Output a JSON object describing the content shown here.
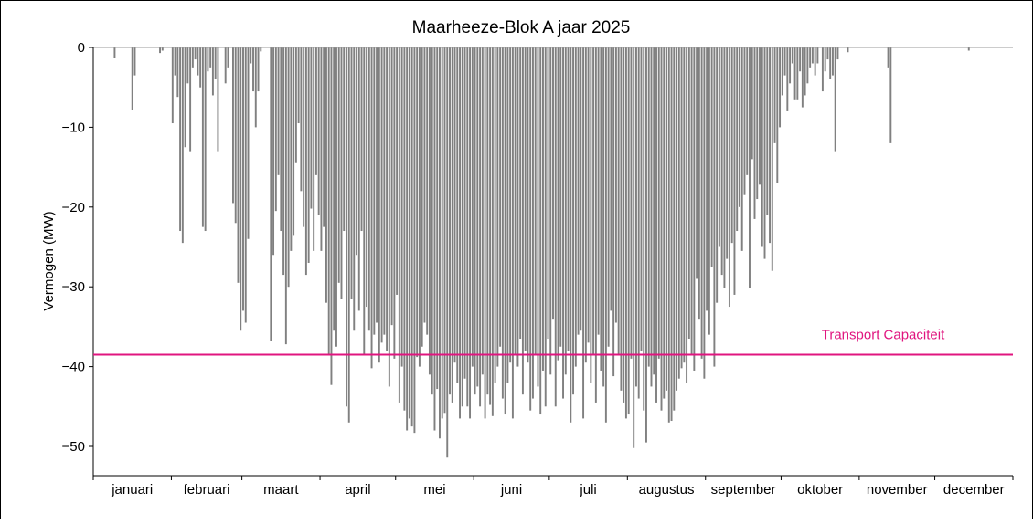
{
  "chart_data": {
    "type": "bar",
    "title": "Maarheeze-Blok A jaar 2025",
    "ylabel": "Vermogen (MW)",
    "xlabel": "",
    "ylim": [
      -53.5,
      0
    ],
    "yticks": [
      0,
      -10,
      -20,
      -30,
      -40,
      -50
    ],
    "xlim": [
      1,
      366
    ],
    "grid": false,
    "bar_color": "#808080",
    "months": [
      {
        "label": "januari",
        "start": 1,
        "end": 32
      },
      {
        "label": "februari",
        "start": 32,
        "end": 60
      },
      {
        "label": "maart",
        "start": 60,
        "end": 91
      },
      {
        "label": "april",
        "start": 91,
        "end": 121
      },
      {
        "label": "mei",
        "start": 121,
        "end": 152
      },
      {
        "label": "juni",
        "start": 152,
        "end": 182
      },
      {
        "label": "juli",
        "start": 182,
        "end": 213
      },
      {
        "label": "augustus",
        "start": 213,
        "end": 244
      },
      {
        "label": "september",
        "start": 244,
        "end": 274
      },
      {
        "label": "oktober",
        "start": 274,
        "end": 305
      },
      {
        "label": "november",
        "start": 305,
        "end": 335
      },
      {
        "label": "december",
        "start": 335,
        "end": 366
      }
    ],
    "series": [
      {
        "values": [
          0,
          0,
          0,
          0,
          0,
          0,
          0,
          0,
          -1.3,
          0,
          0,
          0,
          0,
          0,
          0,
          -7.8,
          -3.5,
          0,
          0,
          0,
          0,
          0,
          0,
          0,
          0,
          0,
          -0.7,
          -0.4,
          0,
          0,
          0,
          -9.5,
          -3.5,
          -6.2,
          -23,
          -24.5,
          -12.5,
          -4.5,
          -13,
          -2.5,
          -1.5,
          -3.5,
          -5,
          -22.5,
          -23,
          -3,
          -2.5,
          -6,
          -4,
          -13,
          0,
          0,
          -4.5,
          -2.5,
          0,
          -19.5,
          -22,
          -29.5,
          -35.5,
          -33,
          -34.5,
          -24,
          -2,
          -5.5,
          -10,
          -5.5,
          -0.5,
          0,
          0,
          0,
          -36.8,
          -26,
          -20.5,
          -16,
          -23,
          -28.5,
          -37.2,
          -30,
          -25.5,
          -23.5,
          -14.5,
          -9.5,
          -18,
          -22.5,
          -28.5,
          -27,
          -20.2,
          -25.5,
          -16,
          -21,
          -25.5,
          -22.5,
          -32,
          -38.5,
          -42.3,
          -35.5,
          -37.5,
          -29.5,
          -31.5,
          -23,
          -45,
          -47,
          -31.5,
          -35.5,
          -26,
          -33,
          -23,
          -38.5,
          -32.5,
          -35.5,
          -40.2,
          -36,
          -34.5,
          -39.5,
          -37,
          -36,
          -38,
          -42.5,
          -34.8,
          -39,
          -31,
          -44.5,
          -40,
          -45.5,
          -48,
          -46.5,
          -47.5,
          -48.3,
          -38.8,
          -40,
          -37.5,
          -34.5,
          -36,
          -41,
          -43.5,
          -48,
          -42.8,
          -49,
          -46.5,
          -45.8,
          -51.4,
          -43.5,
          -44.5,
          -39.5,
          -42,
          -46.5,
          -45,
          -41.5,
          -45,
          -46.5,
          -40,
          -43.5,
          -42.5,
          -45,
          -41,
          -46.5,
          -43.5,
          -44.8,
          -46.2,
          -42,
          -40,
          -37.5,
          -44,
          -46,
          -42,
          -39.5,
          -46.5,
          -38.5,
          -40,
          -36.5,
          -43.5,
          -38,
          -39.5,
          -45.5,
          -44,
          -38.5,
          -42.5,
          -46,
          -40.5,
          -45,
          -36.5,
          -41,
          -34,
          -45,
          -39.2,
          -37.5,
          -44,
          -41,
          -38,
          -47,
          -43.5,
          -40,
          -36,
          -35.5,
          -46.5,
          -39.5,
          -37,
          -42,
          -38.5,
          -44.5,
          -36,
          -40.5,
          -42.5,
          -47,
          -37.5,
          -33,
          -41.2,
          -34.5,
          -38.5,
          -43,
          -44.5,
          -46.5,
          -46,
          -39,
          -50.2,
          -42.5,
          -44,
          -38,
          -45.5,
          -49.5,
          -40,
          -42.5,
          -41,
          -44.5,
          -39,
          -45.5,
          -44,
          -43,
          -47,
          -46.8,
          -45.5,
          -43,
          -41.5,
          -40.2,
          -39.5,
          -42,
          -36.5,
          -38.5,
          -40.5,
          -29,
          -34,
          -39,
          -41.5,
          -33,
          -36,
          -27.5,
          -40,
          -32,
          -25,
          -28.5,
          -30.2,
          -26.5,
          -32.5,
          -24.5,
          -31,
          -23,
          -20,
          -25.5,
          -18.5,
          -16,
          -30.2,
          -14,
          -21.5,
          -19,
          -17.2,
          -25,
          -26.5,
          -21,
          -24.5,
          -28,
          -12,
          -17,
          -10,
          -6,
          -3.5,
          -8,
          -4.5,
          -2,
          -6.5,
          -6.5,
          -3,
          -7.5,
          -6,
          -4.5,
          -2.5,
          -2,
          -3.5,
          -2,
          0,
          -5.5,
          -3,
          -1.5,
          -4,
          -3.5,
          -13,
          -1.5,
          0,
          0,
          0,
          -0.6,
          0,
          0,
          0,
          0,
          0,
          0,
          0,
          0,
          0,
          0,
          0,
          0,
          0,
          0,
          0,
          -2.5,
          -12,
          0,
          0,
          0,
          0,
          0,
          0,
          0,
          0,
          0,
          0,
          0,
          0,
          0,
          0,
          0,
          0,
          0,
          0,
          0,
          0,
          0,
          0,
          0,
          0,
          0,
          0,
          0,
          0,
          0,
          0,
          -0.4
        ]
      }
    ],
    "reference_line": {
      "label": "Transport Capaciteit",
      "value": -38.5,
      "color": "#e0157f"
    }
  }
}
